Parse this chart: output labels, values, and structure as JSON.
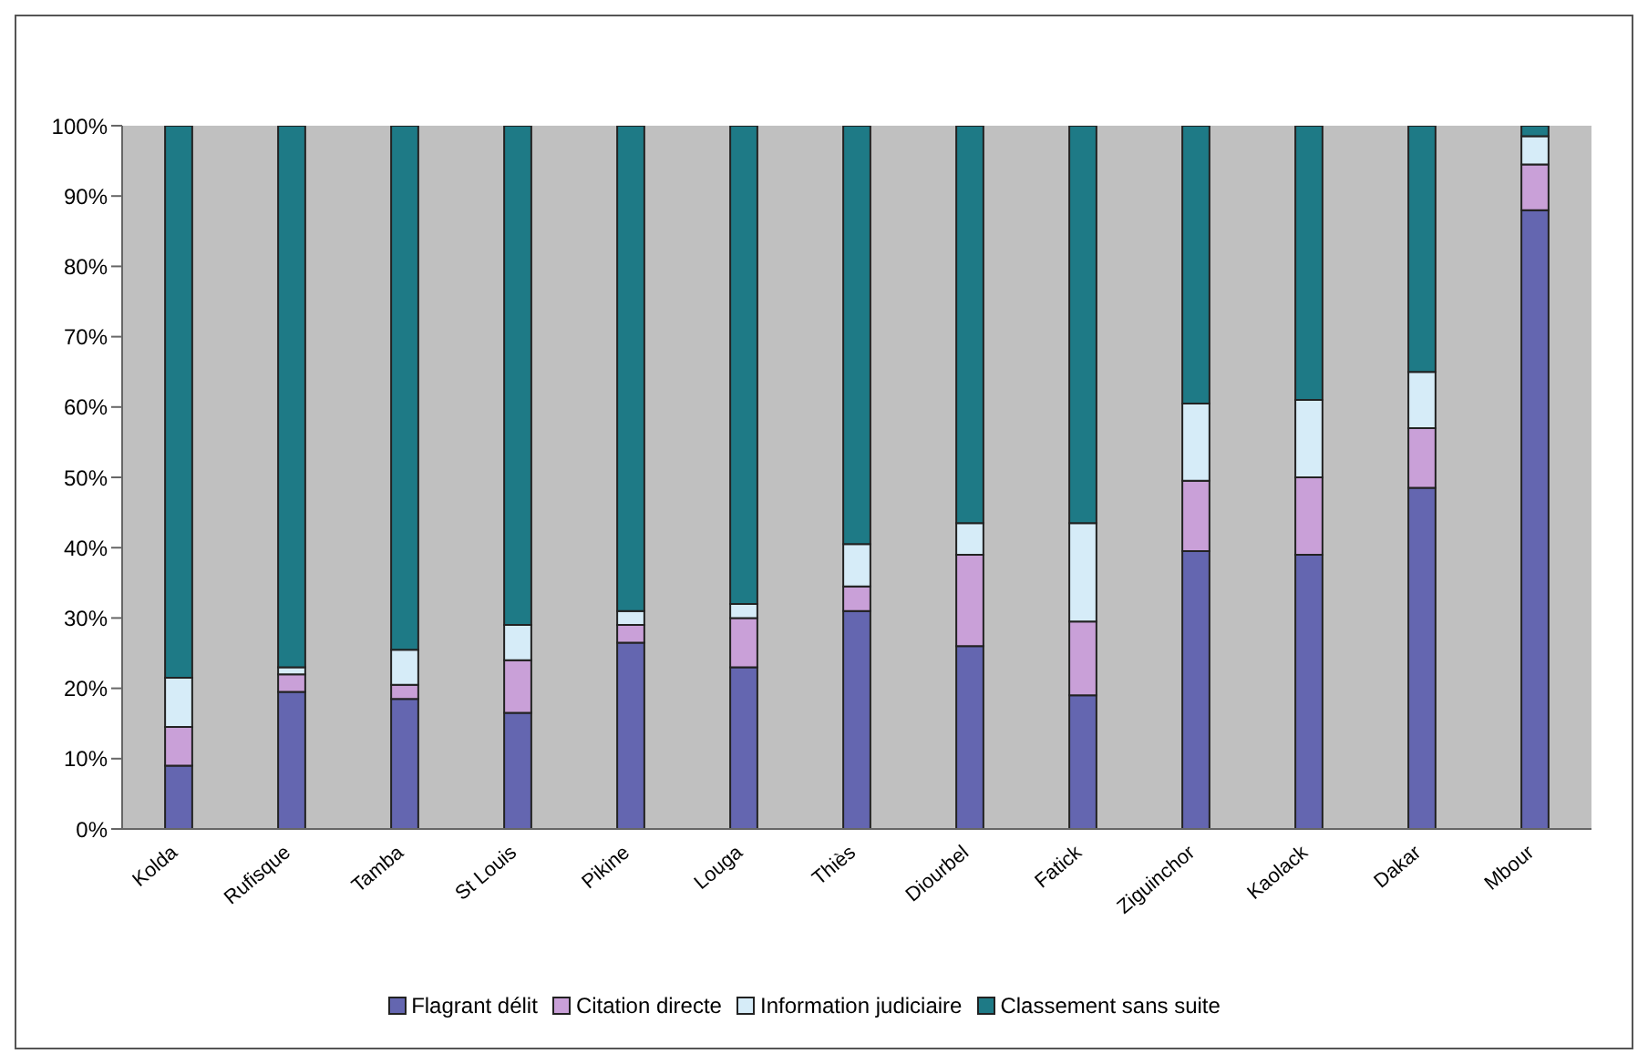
{
  "chart_data": {
    "type": "bar",
    "stacked": true,
    "categories": [
      "Kolda",
      "Rufisque",
      "Tamba",
      "St Louis",
      "Pikine",
      "Louga",
      "Thiès",
      "Diourbel",
      "Fatick",
      "Ziguinchor",
      "Kaolack",
      "Dakar",
      "Mbour"
    ],
    "series": [
      {
        "name": "Flagrant délit",
        "color": "#6466b0",
        "values": [
          9,
          19.5,
          18.5,
          16.5,
          26.5,
          23,
          31,
          26,
          19,
          39.5,
          39,
          48.5,
          88
        ]
      },
      {
        "name": "Citation directe",
        "color": "#c9a0d8",
        "values": [
          5.5,
          2.5,
          2,
          7.5,
          2.5,
          7,
          3.5,
          13,
          10.5,
          10,
          11,
          8.5,
          6.5
        ]
      },
      {
        "name": "Information judiciaire",
        "color": "#d6ecf8",
        "values": [
          7,
          1,
          5,
          5,
          2,
          2,
          6,
          4.5,
          14,
          11,
          11,
          8,
          4
        ]
      },
      {
        "name": "Classement sans suite",
        "color": "#1e7a86",
        "values": [
          78.5,
          77,
          74.5,
          71,
          69,
          68,
          59.5,
          56.5,
          56.5,
          39.5,
          39,
          35,
          1.5
        ]
      }
    ],
    "ylim": [
      0,
      100
    ],
    "yticks": [
      {
        "value": 0,
        "label": "0%"
      },
      {
        "value": 10,
        "label": "10%"
      },
      {
        "value": 20,
        "label": "20%"
      },
      {
        "value": 30,
        "label": "30%"
      },
      {
        "value": 40,
        "label": "40%"
      },
      {
        "value": 50,
        "label": "50%"
      },
      {
        "value": 60,
        "label": "60%"
      },
      {
        "value": 70,
        "label": "70%"
      },
      {
        "value": 80,
        "label": "80%"
      },
      {
        "value": 90,
        "label": "90%"
      },
      {
        "value": 100,
        "label": "100%"
      }
    ],
    "grid": false,
    "legend": "bottom"
  }
}
